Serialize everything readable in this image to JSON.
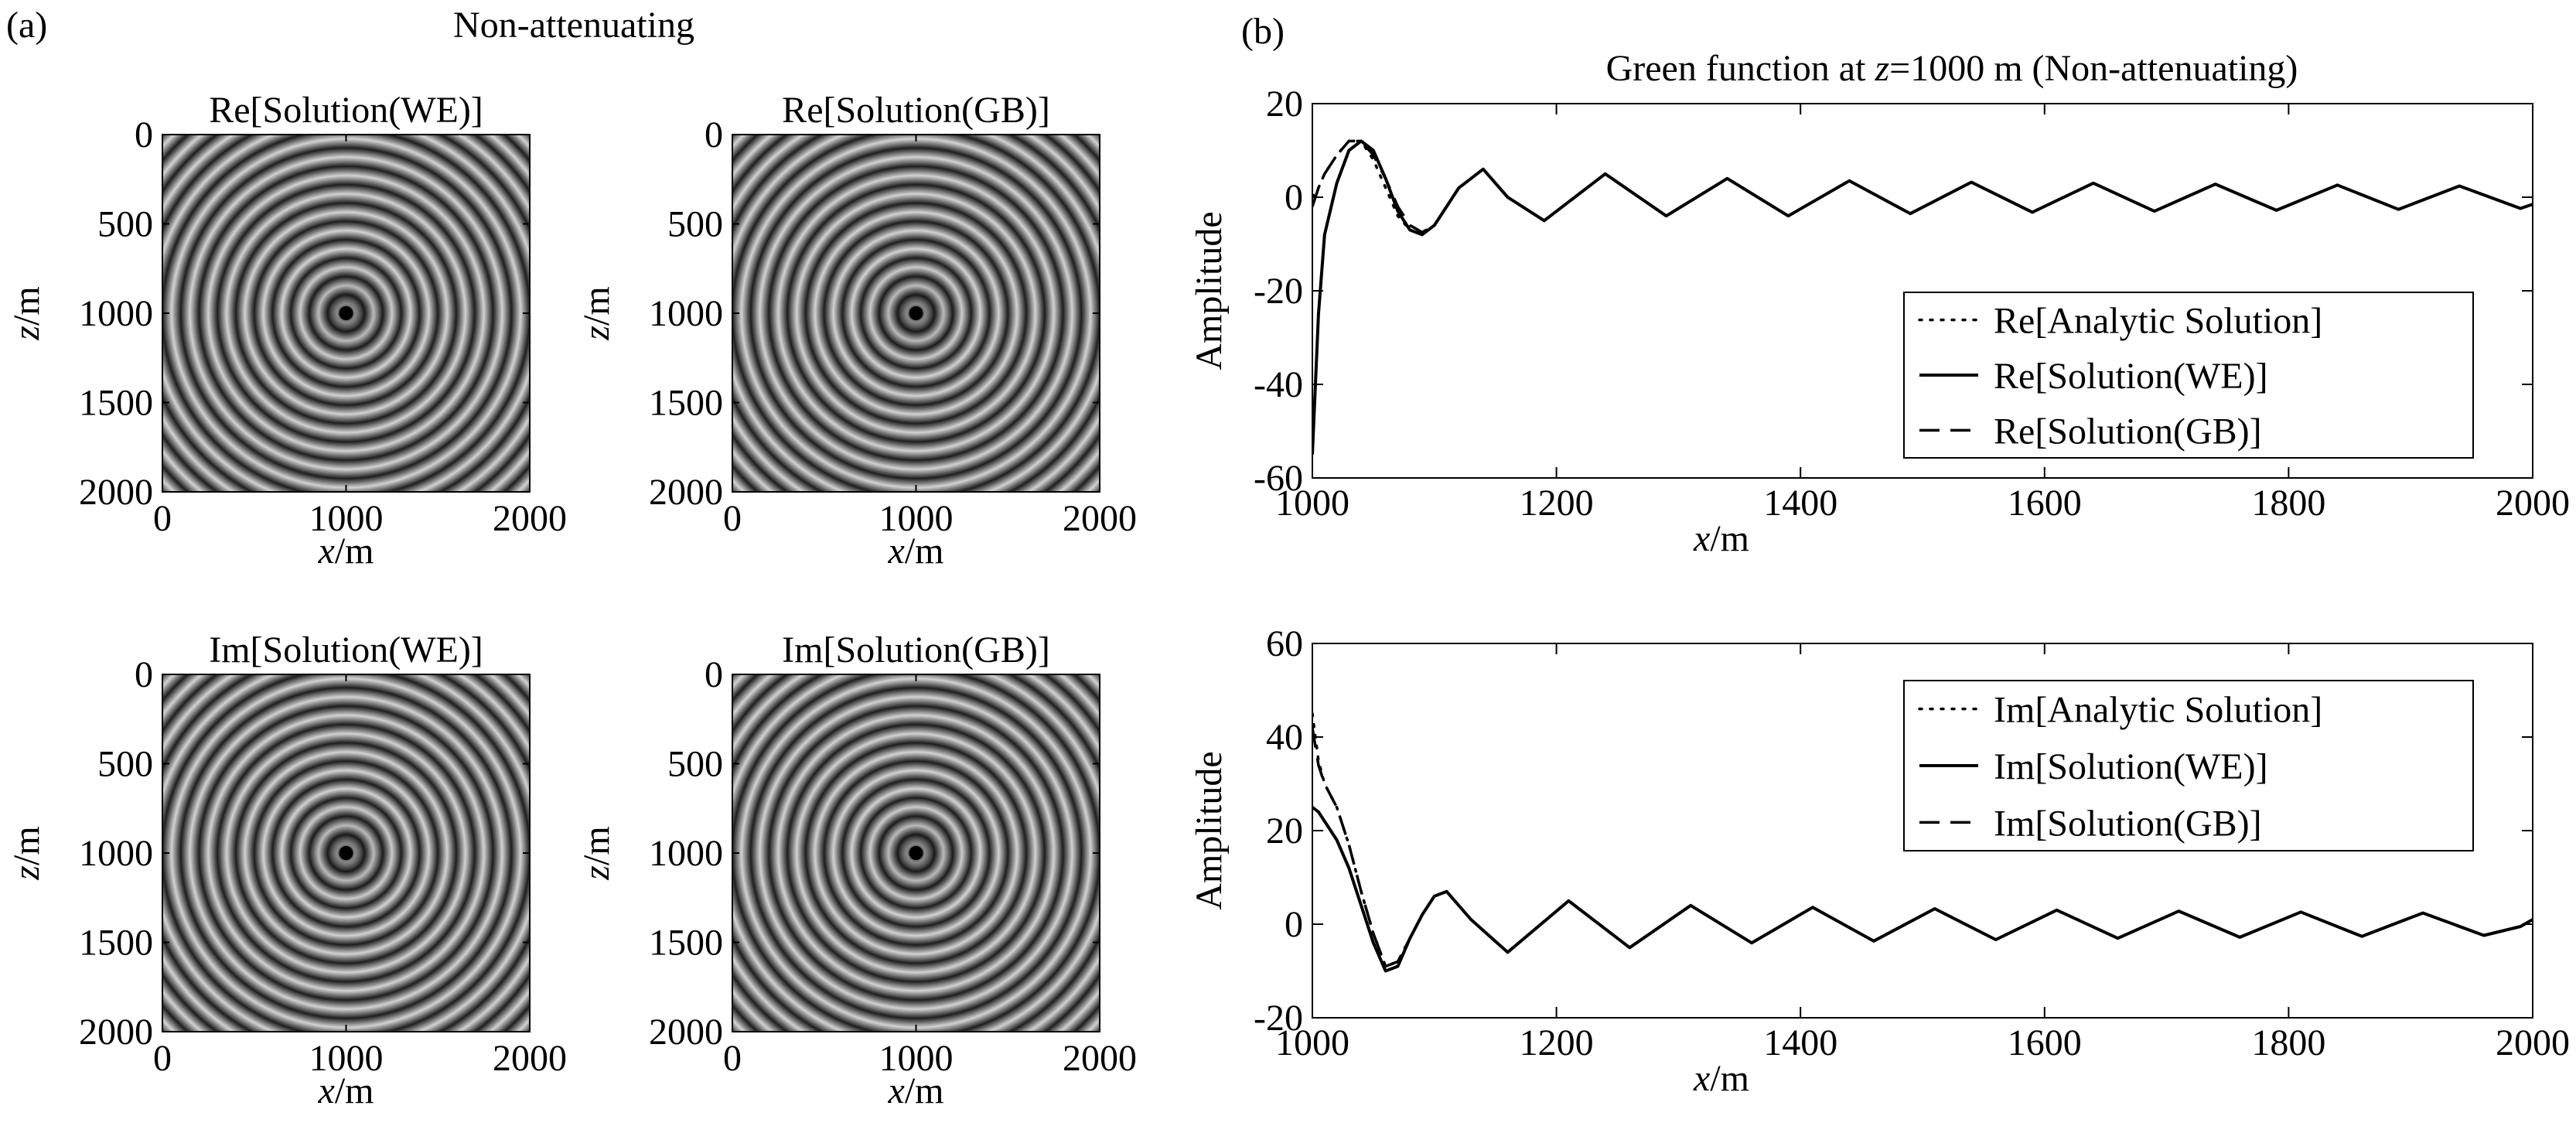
{
  "figure": {
    "panel_a": {
      "label": "(a)",
      "title": "Non-attenuating",
      "images": [
        {
          "title": "Re[Solution(WE)]",
          "xlabel_var": "x",
          "xlabel_unit": "/m",
          "ylabel_var": "z",
          "ylabel_unit": "/m",
          "xticks": [
            "0",
            "1000",
            "2000"
          ],
          "yticks": [
            "0",
            "500",
            "1000",
            "1500",
            "2000"
          ]
        },
        {
          "title": "Re[Solution(GB)]",
          "xlabel_var": "x",
          "xlabel_unit": "/m",
          "ylabel_var": "z",
          "ylabel_unit": "/m",
          "xticks": [
            "0",
            "1000",
            "2000"
          ],
          "yticks": [
            "0",
            "500",
            "1000",
            "1500",
            "2000"
          ]
        },
        {
          "title": "Im[Solution(WE)]",
          "xlabel_var": "x",
          "xlabel_unit": "/m",
          "ylabel_var": "z",
          "ylabel_unit": "/m",
          "xticks": [
            "0",
            "1000",
            "2000"
          ],
          "yticks": [
            "0",
            "500",
            "1000",
            "1500",
            "2000"
          ]
        },
        {
          "title": "Im[Solution(GB)]",
          "xlabel_var": "x",
          "xlabel_unit": "/m",
          "ylabel_var": "z",
          "ylabel_unit": "/m",
          "xticks": [
            "0",
            "1000",
            "2000"
          ],
          "yticks": [
            "0",
            "500",
            "1000",
            "1500",
            "2000"
          ]
        }
      ]
    },
    "panel_b": {
      "label": "(b)",
      "title_pre": "Green function at ",
      "title_var": "z",
      "title_post": "=1000 m (Non-attenuating)"
    }
  },
  "colors": {
    "line": "#000000",
    "background": "#ffffff",
    "image_dark": "#1e1e1e",
    "image_light": "#d2d2d2"
  },
  "chart_data": [
    {
      "type": "heatmap",
      "title": "Re[Solution(WE)]",
      "xlabel": "x/m",
      "ylabel": "z/m",
      "xlim": [
        0,
        2000
      ],
      "ylim": [
        0,
        2000
      ],
      "source_x": 1000,
      "source_z": 1000,
      "ring_spacing": 100,
      "colormap": "gray"
    },
    {
      "type": "heatmap",
      "title": "Re[Solution(GB)]",
      "xlabel": "x/m",
      "ylabel": "z/m",
      "xlim": [
        0,
        2000
      ],
      "ylim": [
        0,
        2000
      ],
      "source_x": 1000,
      "source_z": 1000,
      "ring_spacing": 100,
      "colormap": "gray"
    },
    {
      "type": "heatmap",
      "title": "Im[Solution(WE)]",
      "xlabel": "x/m",
      "ylabel": "z/m",
      "xlim": [
        0,
        2000
      ],
      "ylim": [
        0,
        2000
      ],
      "source_x": 1000,
      "source_z": 1000,
      "ring_spacing": 100,
      "colormap": "gray"
    },
    {
      "type": "heatmap",
      "title": "Im[Solution(GB)]",
      "xlabel": "x/m",
      "ylabel": "z/m",
      "xlim": [
        0,
        2000
      ],
      "ylim": [
        0,
        2000
      ],
      "source_x": 1000,
      "source_z": 1000,
      "ring_spacing": 100,
      "colormap": "gray"
    },
    {
      "type": "line",
      "title": "Green function at z=1000 m (Non-attenuating)",
      "xlabel": "x/m",
      "ylabel": "Amplitude",
      "xlim": [
        1000,
        2000
      ],
      "ylim": [
        -60,
        20
      ],
      "xticks": [
        1000,
        1200,
        1400,
        1600,
        1800,
        2000
      ],
      "yticks": [
        20,
        0,
        -20,
        -40,
        -60
      ],
      "legend_position": "right",
      "series": [
        {
          "name": "Re[Analytic Solution]",
          "style": "dotted",
          "x": [
            1000,
            1005,
            1010,
            1020,
            1030,
            1040,
            1050,
            1060,
            1070,
            1080,
            1090,
            1100,
            1110,
            1120,
            1140,
            1160,
            1190,
            1240,
            1290,
            1340,
            1390,
            1440,
            1490,
            1540,
            1590,
            1640,
            1690,
            1740,
            1790,
            1840,
            1890,
            1940,
            1990,
            2000
          ],
          "y": [
            0,
            2,
            5,
            9,
            12,
            12,
            8,
            2,
            -4,
            -7,
            -8,
            -6,
            -2,
            2,
            6,
            0,
            -5,
            5,
            -4,
            4,
            -4,
            3.5,
            -3.5,
            3.2,
            -3.2,
            3,
            -3,
            2.8,
            -2.8,
            2.6,
            -2.6,
            2.4,
            -2.4,
            -1.5
          ]
        },
        {
          "name": "Re[Solution(WE)]",
          "style": "solid",
          "x": [
            1000,
            1005,
            1010,
            1020,
            1030,
            1040,
            1050,
            1060,
            1070,
            1080,
            1090,
            1100,
            1110,
            1120,
            1140,
            1160,
            1190,
            1240,
            1290,
            1340,
            1390,
            1440,
            1490,
            1540,
            1590,
            1640,
            1690,
            1740,
            1790,
            1840,
            1890,
            1940,
            1990,
            2000
          ],
          "y": [
            -55,
            -25,
            -8,
            3,
            10,
            12,
            10,
            4,
            -3,
            -7,
            -8,
            -6,
            -2,
            2,
            6,
            0,
            -5,
            5,
            -4,
            4,
            -4,
            3.5,
            -3.5,
            3.2,
            -3.2,
            3,
            -3,
            2.8,
            -2.8,
            2.6,
            -2.6,
            2.4,
            -2.4,
            -1.5
          ]
        },
        {
          "name": "Re[Solution(GB)]",
          "style": "dashed",
          "x": [
            1000,
            1005,
            1010,
            1020,
            1030,
            1040,
            1050,
            1060,
            1070,
            1080,
            1090,
            1100,
            1110,
            1120,
            1140,
            1160,
            1190,
            1240,
            1290,
            1340,
            1390,
            1440,
            1490,
            1540,
            1590,
            1640,
            1690,
            1740,
            1790,
            1840,
            1890,
            1940,
            1990,
            2000
          ],
          "y": [
            -2,
            2,
            5,
            9,
            12,
            12,
            9,
            4,
            -2,
            -6,
            -7.5,
            -6,
            -2,
            2,
            6,
            0,
            -5,
            5,
            -4,
            4,
            -4,
            3.5,
            -3.5,
            3.2,
            -3.2,
            3,
            -3,
            2.8,
            -2.8,
            2.6,
            -2.6,
            2.4,
            -2.4,
            -1.5
          ]
        }
      ]
    },
    {
      "type": "line",
      "title": "",
      "xlabel": "x/m",
      "ylabel": "Amplitude",
      "xlim": [
        1000,
        2000
      ],
      "ylim": [
        -20,
        60
      ],
      "xticks": [
        1000,
        1200,
        1400,
        1600,
        1800,
        2000
      ],
      "yticks": [
        60,
        40,
        20,
        0,
        -20
      ],
      "legend_position": "top-right",
      "series": [
        {
          "name": "Im[Analytic Solution]",
          "style": "dotted",
          "x": [
            1000,
            1005,
            1010,
            1020,
            1030,
            1040,
            1050,
            1060,
            1070,
            1080,
            1090,
            1100,
            1110,
            1130,
            1160,
            1210,
            1260,
            1310,
            1360,
            1410,
            1460,
            1510,
            1560,
            1610,
            1660,
            1710,
            1760,
            1810,
            1860,
            1910,
            1960,
            1990,
            2000
          ],
          "y": [
            45,
            35,
            30,
            25,
            17,
            7,
            -2,
            -9,
            -8,
            -3,
            2,
            6,
            7,
            1,
            -6,
            5,
            -5,
            4,
            -4,
            3.6,
            -3.6,
            3.3,
            -3.3,
            3,
            -3,
            2.8,
            -2.8,
            2.6,
            -2.6,
            2.4,
            -2.4,
            -0.5,
            1
          ]
        },
        {
          "name": "Im[Solution(WE)]",
          "style": "solid",
          "x": [
            1000,
            1005,
            1010,
            1020,
            1030,
            1040,
            1050,
            1060,
            1070,
            1080,
            1090,
            1100,
            1110,
            1130,
            1160,
            1210,
            1260,
            1310,
            1360,
            1410,
            1460,
            1510,
            1560,
            1610,
            1660,
            1710,
            1760,
            1810,
            1860,
            1910,
            1960,
            1990,
            2000
          ],
          "y": [
            25,
            24,
            22,
            18,
            12,
            4,
            -4,
            -10,
            -9,
            -3,
            2,
            6,
            7,
            1,
            -6,
            5,
            -5,
            4,
            -4,
            3.6,
            -3.6,
            3.3,
            -3.3,
            3,
            -3,
            2.8,
            -2.8,
            2.6,
            -2.6,
            2.4,
            -2.4,
            -0.5,
            1
          ]
        },
        {
          "name": "Im[Solution(GB)]",
          "style": "dashed",
          "x": [
            1000,
            1005,
            1010,
            1020,
            1030,
            1040,
            1050,
            1060,
            1070,
            1080,
            1090,
            1100,
            1110,
            1130,
            1160,
            1210,
            1260,
            1310,
            1360,
            1410,
            1460,
            1510,
            1560,
            1610,
            1660,
            1710,
            1760,
            1810,
            1860,
            1910,
            1960,
            1990,
            2000
          ],
          "y": [
            42,
            34,
            30,
            25,
            17,
            7,
            -2,
            -9,
            -8,
            -3,
            2,
            6,
            7,
            1,
            -6,
            5,
            -5,
            4,
            -4,
            3.6,
            -3.6,
            3.3,
            -3.3,
            3,
            -3,
            2.8,
            -2.8,
            2.6,
            -2.6,
            2.4,
            -2.4,
            -0.5,
            1
          ]
        }
      ]
    }
  ]
}
